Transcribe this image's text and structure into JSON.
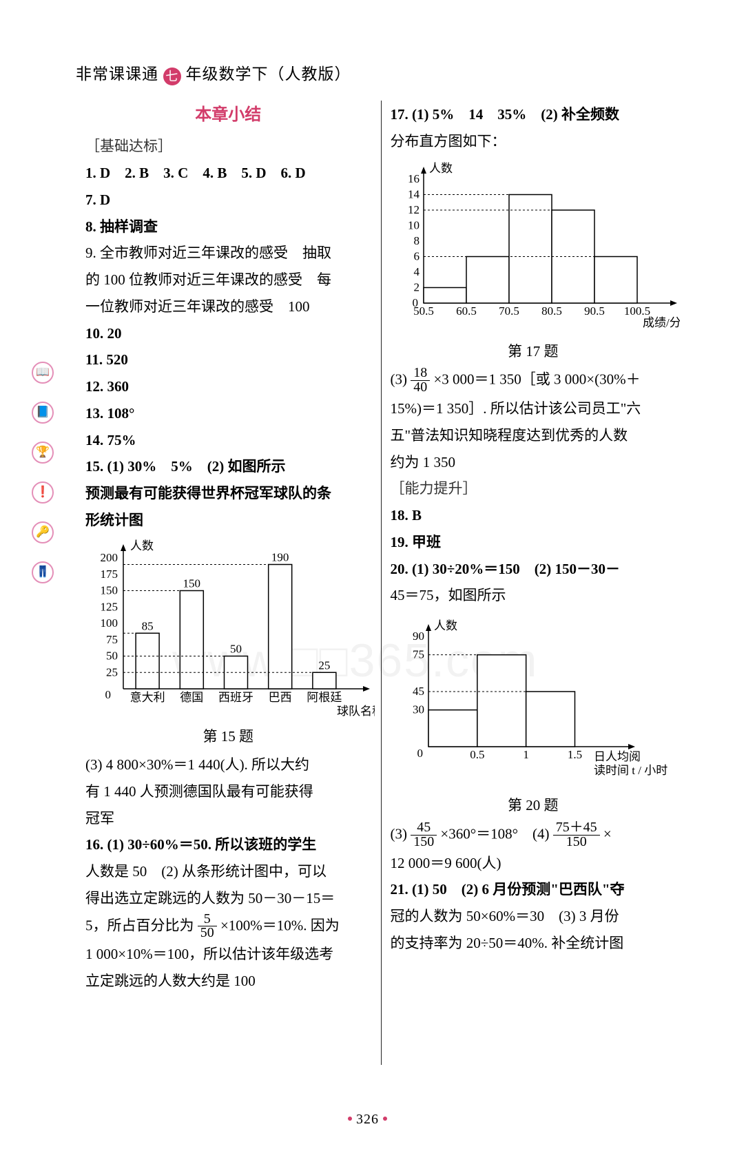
{
  "header": {
    "book_prefix": "非常课课通",
    "badge": "七",
    "book_suffix": "年级数学下（人教版）"
  },
  "page_number": "326",
  "left": {
    "section_title": "本章小结",
    "subtitle": "［基础达标］",
    "mc_line": "1. D　2. B　3. C　4. B　5. D　6. D",
    "a7": "7. D",
    "a8": "8. 抽样调查",
    "a9a": "9. 全市教师对近三年课改的感受　抽取",
    "a9b": "的 100 位教师对近三年课改的感受　每",
    "a9c": "一位教师对近三年课改的感受　100",
    "a10": "10. 20",
    "a11": "11. 520",
    "a12": "12. 360",
    "a13": "13. 108°",
    "a14": "14. 75%",
    "a15": "15. (1) 30%　5%　(2) 如图所示",
    "q15_title1": "预测最有可能获得世界杯冠军球队的条",
    "q15_title2": "形统计图",
    "chart15": {
      "type": "bar",
      "ylabel": "人数",
      "xlabel": "球队名称",
      "categories": [
        "意大利",
        "德国",
        "西班牙",
        "巴西",
        "阿根廷"
      ],
      "values": [
        85,
        150,
        50,
        190,
        25
      ],
      "value_labels": [
        "85",
        "150",
        "50",
        "190",
        "25"
      ],
      "yticks": [
        25,
        50,
        75,
        100,
        125,
        150,
        175,
        200
      ],
      "ytick_labels": [
        "25",
        "50",
        "75",
        "100",
        "125",
        "150",
        "175",
        "200"
      ],
      "bar_fill": "#ffffff",
      "bar_stroke": "#000000",
      "axis_color": "#000000",
      "grid_dash": "3,3",
      "caption": "第 15 题"
    },
    "a15_3a": "(3) 4 800×30%＝1 440(人). 所以大约",
    "a15_3b": "有 1 440 人预测德国队最有可能获得",
    "a15_3c": "冠军",
    "a16a": "16. (1) 30÷60%＝50. 所以该班的学生",
    "a16b": "人数是 50　(2) 从条形统计图中，可以",
    "a16c": "得出选立定跳远的人数为 50－30－15＝",
    "a16d_pre": "5，所占百分比为",
    "a16d_frac_n": "5",
    "a16d_frac_d": "50",
    "a16d_post": "×100%＝10%. 因为",
    "a16e": "1 000×10%＝100，所以估计该年级选考",
    "a16f": "立定跳远的人数大约是 100"
  },
  "right": {
    "a17a": "17. (1) 5%　14　35%　(2) 补全频数",
    "a17b": "分布直方图如下：",
    "chart17": {
      "type": "histogram",
      "ylabel": "人数",
      "xlabel": "成绩/分",
      "bins": [
        "50.5",
        "60.5",
        "70.5",
        "80.5",
        "90.5",
        "100.5"
      ],
      "values": [
        2,
        6,
        14,
        12,
        6
      ],
      "yticks": [
        2,
        4,
        6,
        8,
        10,
        12,
        14,
        16
      ],
      "ytick_labels": [
        "2",
        "4",
        "6",
        "8",
        "10",
        "12",
        "14",
        "16"
      ],
      "bar_fill": "#ffffff",
      "bar_stroke": "#000000",
      "axis_color": "#000000",
      "grid_dash": "3,3",
      "caption": "第 17 题"
    },
    "a17_3a_pre": "(3) ",
    "a17_3a_frac_n": "18",
    "a17_3a_frac_d": "40",
    "a17_3a_post": "×3 000＝1 350［或 3 000×(30%＋",
    "a17_3b": "15%)＝1 350］. 所以估计该公司员工\"六",
    "a17_3c": "五\"普法知识知晓程度达到优秀的人数",
    "a17_3d": "约为 1 350",
    "subtitle2": "［能力提升］",
    "a18": "18. B",
    "a19": "19. 甲班",
    "a20a": "20. (1) 30÷20%＝150　(2) 150－30－",
    "a20b": "45＝75，如图所示",
    "chart20": {
      "type": "histogram",
      "ylabel": "人数",
      "xlabel_a": "日人均阅",
      "xlabel_b": "读时间 t / 小时",
      "bins": [
        "0",
        "0.5",
        "1",
        "1.5"
      ],
      "values": [
        30,
        75,
        45
      ],
      "yticks": [
        30,
        45,
        75,
        90
      ],
      "ytick_labels": [
        "30",
        "45",
        "75",
        "90"
      ],
      "bar_fill": "#ffffff",
      "bar_stroke": "#000000",
      "axis_color": "#000000",
      "grid_dash": "3,3",
      "caption": "第 20 题"
    },
    "a20_3_pre": "(3) ",
    "a20_3_f1n": "45",
    "a20_3_f1d": "150",
    "a20_3_mid": "×360°＝108°　(4) ",
    "a20_3_f2n": "75＋45",
    "a20_3_f2d": "150",
    "a20_3_post": "×",
    "a20_4": "12 000＝9 600(人)",
    "a21a": "21. (1) 50　(2) 6 月份预测\"巴西队\"夺",
    "a21b": "冠的人数为 50×60%＝30　(3) 3 月份",
    "a21c": "的支持率为 20÷50＝40%. 补全统计图"
  },
  "sidebar_icons": [
    "📖",
    "📘",
    "🏆",
    "❗",
    "🔑",
    "👖"
  ]
}
